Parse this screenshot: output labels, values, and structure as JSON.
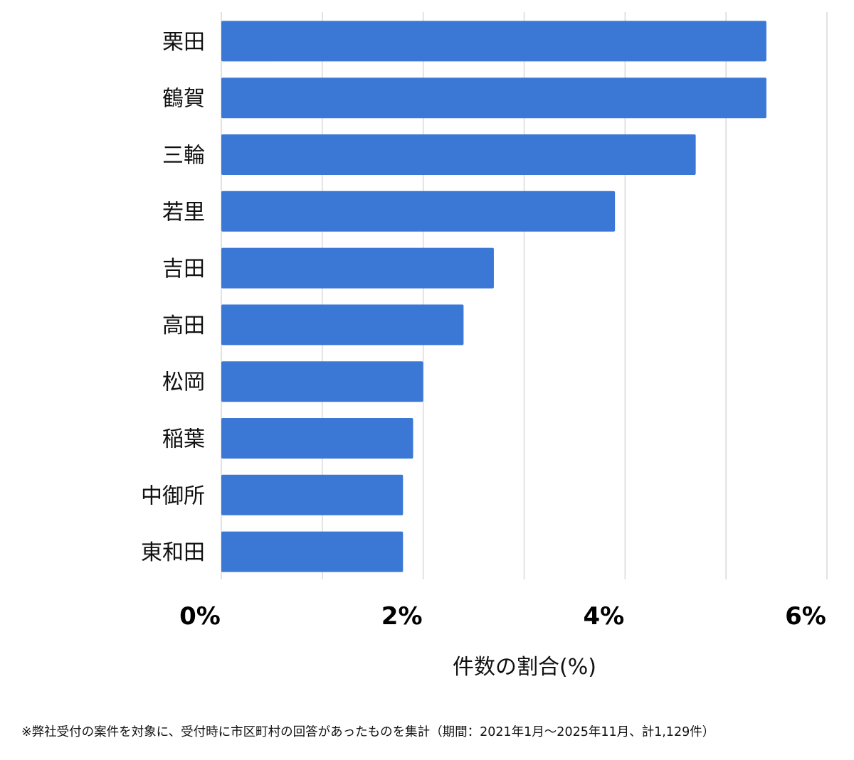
{
  "chart_data": {
    "type": "bar",
    "orientation": "horizontal",
    "categories": [
      "栗田",
      "鶴賀",
      "三輪",
      "若里",
      "吉田",
      "高田",
      "松岡",
      "稲葉",
      "中御所",
      "東和田"
    ],
    "values": [
      5.4,
      5.4,
      4.7,
      3.9,
      2.7,
      2.4,
      2.0,
      1.9,
      1.8,
      1.8
    ],
    "xlim": [
      0,
      6
    ],
    "xticks": [
      0,
      2,
      4,
      6
    ],
    "xtick_labels": [
      "0%",
      "2%",
      "4%",
      "6%"
    ],
    "gridlines_at": [
      0,
      1,
      2,
      3,
      4,
      5,
      6
    ],
    "grid": true,
    "xlabel": "件数の割合(%)",
    "ylabel": "",
    "title": "",
    "bar_color": "#3b78d6",
    "grid_color": "#d9d9d9"
  },
  "footnote": "※弊社受付の案件を対象に、受付時に市区町村の回答があったものを集計（期間：2021年1月～2025年11月、計1,129件）"
}
